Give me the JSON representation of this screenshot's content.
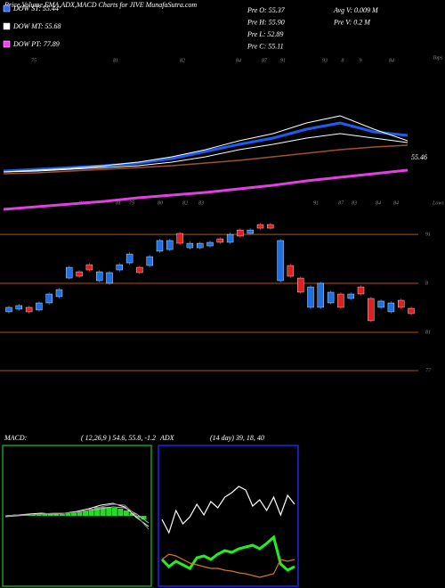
{
  "title": "Price,Volume,EMA,ADX,MACD Charts for JIVE MunafaSutra.com",
  "legend": [
    {
      "label": "DOW ST: 55.44",
      "color": "#2a6cf0"
    },
    {
      "label": "DOW MT: 55.68",
      "color": "#ffffff"
    },
    {
      "label": "DOW PT: 77.89",
      "color": "#f040f0"
    }
  ],
  "info": [
    "Pre O: 55.37",
    "Pre H: 55.90",
    "Pre L: 52.89",
    "Pre C: 55.11",
    "Avg V: 0.009 M",
    "Pre V: 0.2 M"
  ],
  "top_labels": [
    "75",
    "81",
    "82",
    "84",
    "87",
    "91",
    "93",
    "8",
    "9",
    "84"
  ],
  "mid_labels": [
    "81",
    "81",
    "75",
    "80",
    "82",
    "83",
    "91",
    "87",
    "83",
    "84",
    "84"
  ],
  "tops_label": "Tops",
  "lows_label": "Lows",
  "chart_data": [
    {
      "type": "line",
      "ylim": [
        0,
        130
      ],
      "price_label": "55.46",
      "series": [
        {
          "color": "#1e5cf0",
          "width": 3,
          "values": [
            58,
            60,
            62,
            64,
            67,
            72,
            80,
            88,
            95,
            105,
            112,
            102,
            98
          ]
        },
        {
          "color": "#ffffff",
          "width": 1,
          "values": [
            57,
            58,
            60,
            62,
            64,
            68,
            74,
            82,
            88,
            95,
            100,
            95,
            90
          ]
        },
        {
          "color": "#a0522d",
          "width": 1.5,
          "values": [
            55,
            56,
            58,
            60,
            62,
            64,
            67,
            70,
            74,
            78,
            82,
            85,
            87
          ]
        },
        {
          "color": "#e040e0",
          "width": 3,
          "values": [
            15,
            18,
            21,
            24,
            28,
            31,
            34,
            38,
            42,
            47,
            51,
            55,
            59
          ]
        },
        {
          "color": "#ffffff",
          "width": 1,
          "values": [
            57,
            59,
            61,
            64,
            68,
            74,
            82,
            92,
            100,
            112,
            120,
            105,
            92
          ]
        }
      ]
    },
    {
      "type": "candlestick",
      "ylim": [
        50,
        66
      ],
      "up_color": "#1e6fe0",
      "down_color": "#e02020",
      "level_color": "#b5500f",
      "open": [
        56.59,
        56.87,
        57.06,
        56.78,
        57.53,
        58.19,
        60.16,
        60.82,
        61.57,
        59.88,
        59.6,
        61.01,
        61.76,
        61.29,
        61.48,
        62.99,
        63.17,
        64.87,
        63.36,
        63.36,
        63.55,
        64.3,
        63.93,
        65.24,
        64.87,
        65.81,
        65.81,
        59.88,
        61.48,
        60.16,
        57.06,
        57.06,
        57.53,
        58.47,
        58.0,
        59.22,
        58.0,
        57.06,
        56.59,
        57.81,
        56.96
      ],
      "close": [
        57.06,
        57.25,
        56.59,
        57.53,
        58.47,
        58.94,
        61.29,
        60.35,
        61.01,
        60.82,
        60.73,
        61.57,
        62.7,
        60.73,
        62.42,
        64.12,
        64.12,
        63.83,
        63.83,
        63.83,
        63.93,
        63.93,
        64.77,
        64.59,
        65.24,
        65.43,
        65.43,
        64.12,
        60.35,
        58.66,
        59.22,
        59.6,
        58.66,
        57.06,
        58.47,
        58.47,
        55.65,
        57.72,
        57.53,
        57.06,
        56.4
      ],
      "levels": [
        {
          "value": 64.77,
          "label": "91"
        },
        {
          "value": 59.6,
          "label": "8"
        },
        {
          "value": 54.42,
          "label": "81"
        },
        {
          "value": 50.38,
          "label": "77"
        }
      ]
    },
    {
      "type": "macd",
      "title": "MACD:",
      "subtitle": "( 12,26,9 ) 54.6, 55.8, -1.2",
      "ylim": [
        -79,
        79
      ],
      "border": "#1a9a1a",
      "bar_color": "#22dd22",
      "values": [
        1,
        1,
        1,
        1,
        1,
        2,
        2,
        2,
        2,
        2,
        3,
        3,
        4,
        6,
        8,
        10,
        10,
        10,
        9,
        8,
        6,
        3,
        -2,
        -4
      ],
      "series": [
        {
          "color": "#ffffff",
          "values": [
            0,
            1,
            2,
            3,
            2,
            3,
            5,
            8,
            12,
            14,
            10,
            -2,
            -12
          ]
        },
        {
          "color": "#bbbbbb",
          "values": [
            -1,
            0,
            1,
            2,
            2,
            3,
            4,
            6,
            8,
            10,
            9,
            2,
            -8
          ]
        },
        {
          "color": "#888888",
          "values": [
            0,
            1,
            1,
            2,
            3,
            3,
            4,
            6,
            10,
            13,
            12,
            0,
            -15
          ]
        }
      ]
    },
    {
      "type": "line",
      "title": "ADX",
      "subtitle": "(14  day) 39, 18, 40",
      "ylim": [
        0,
        158
      ],
      "border": "#2222ee",
      "series": [
        {
          "color": "#ffffff",
          "width": 1.2,
          "values": [
            75,
            60,
            85,
            70,
            78,
            92,
            80,
            95,
            88,
            100,
            105,
            112,
            108,
            90,
            97,
            85,
            100,
            80,
            102,
            92
          ]
        },
        {
          "color": "#22ee22",
          "width": 3,
          "values": [
            30,
            22,
            28,
            24,
            20,
            32,
            34,
            30,
            36,
            40,
            38,
            42,
            44,
            46,
            42,
            48,
            55,
            25,
            18,
            22
          ]
        },
        {
          "color": "#d2781e",
          "width": 1.2,
          "values": [
            30,
            36,
            34,
            30,
            26,
            24,
            22,
            20,
            20,
            18,
            17,
            15,
            14,
            12,
            10,
            12,
            14,
            30,
            28,
            30
          ]
        }
      ]
    }
  ]
}
